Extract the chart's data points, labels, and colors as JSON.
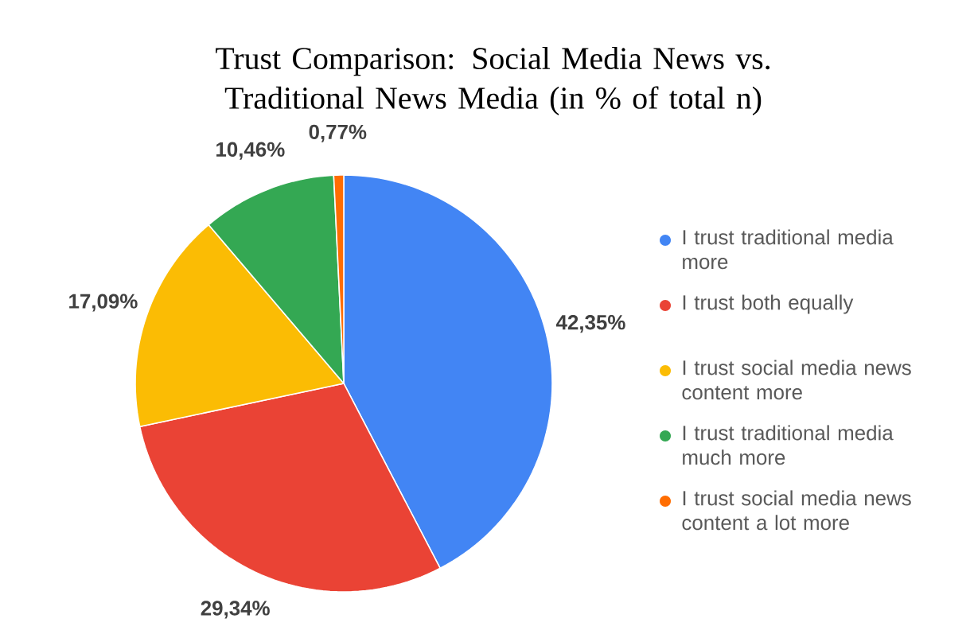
{
  "chart_data": {
    "type": "pie",
    "title": "Trust Comparison: Social Media News vs. Traditional News Media (in % of total n)",
    "categories": [
      "I trust traditional media more",
      "I trust both equally",
      "I trust social media news content more",
      "I trust traditional media much more",
      "I trust social media news content a lot more"
    ],
    "values": [
      42.35,
      29.34,
      17.09,
      10.46,
      0.77
    ],
    "value_labels": [
      "42,35%",
      "29,34%",
      "17,09%",
      "10,46%",
      "0,77%"
    ],
    "colors": [
      "#4285f4",
      "#ea4335",
      "#fbbc04",
      "#34a853",
      "#ff6d01"
    ],
    "legend": "right"
  }
}
